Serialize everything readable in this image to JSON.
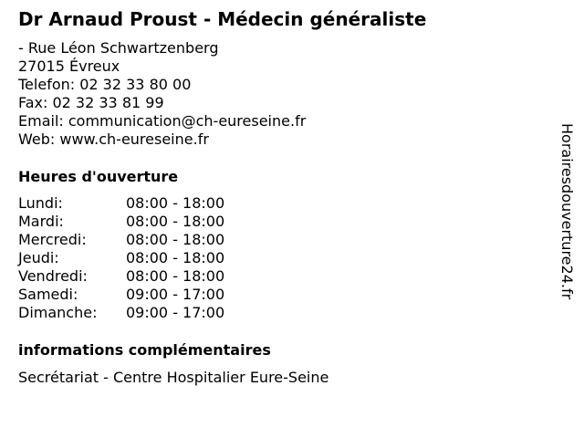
{
  "title": "Dr Arnaud Proust - Médecin généraliste",
  "contact": {
    "street": "- Rue Léon Schwartzenberg",
    "city": "27015 Évreux",
    "phone": "Telefon: 02 32 33 80 00",
    "fax": "Fax: 02 32 33 81 99",
    "email": "Email: communication@ch-eureseine.fr",
    "web": "Web: www.ch-eureseine.fr"
  },
  "hours_heading": "Heures d'ouverture",
  "hours": [
    {
      "day": "Lundi:",
      "time": "08:00 - 18:00"
    },
    {
      "day": "Mardi:",
      "time": "08:00 - 18:00"
    },
    {
      "day": "Mercredi:",
      "time": "08:00 - 18:00"
    },
    {
      "day": "Jeudi:",
      "time": "08:00 - 18:00"
    },
    {
      "day": "Vendredi:",
      "time": "08:00 - 18:00"
    },
    {
      "day": "Samedi:",
      "time": "09:00 - 17:00"
    },
    {
      "day": "Dimanche:",
      "time": "09:00 - 17:00"
    }
  ],
  "info_heading": "informations complémentaires",
  "info_text": "Secrétariat - Centre Hospitalier Eure-Seine",
  "side_brand": "Horairesdouverture24.fr"
}
